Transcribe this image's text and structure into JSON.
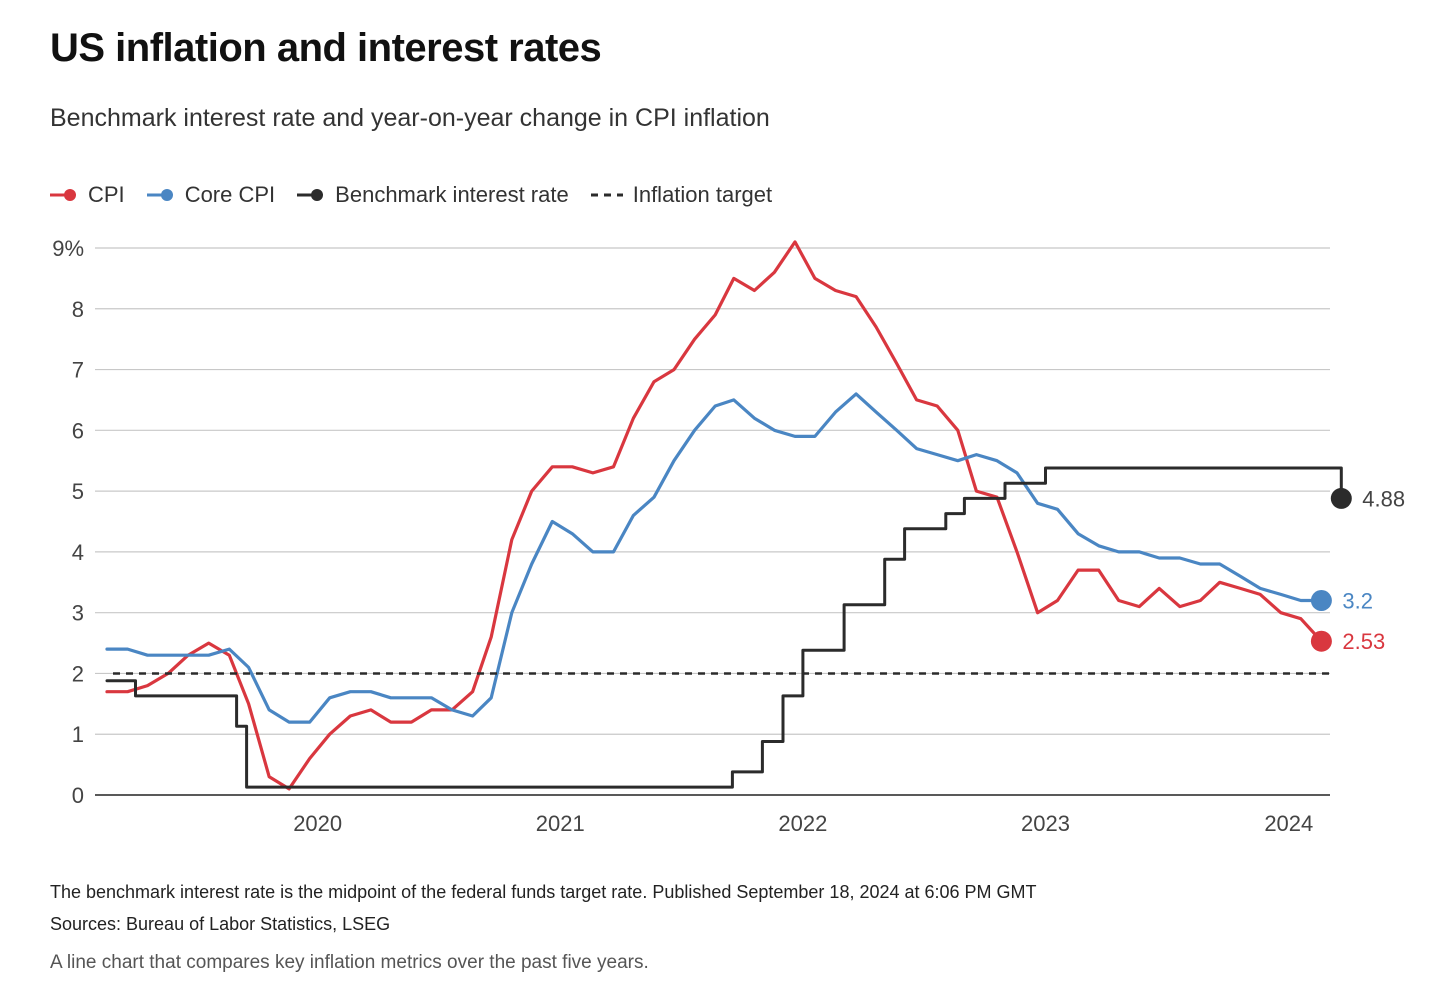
{
  "title": "US inflation and interest rates",
  "subtitle": "Benchmark interest rate and year-on-year change in CPI inflation",
  "legend": [
    {
      "label": "CPI",
      "color": "#d9373f",
      "style": "line-dot"
    },
    {
      "label": "Core CPI",
      "color": "#4a86c3",
      "style": "line-dot"
    },
    {
      "label": "Benchmark interest rate",
      "color": "#2b2b2b",
      "style": "line-dot"
    },
    {
      "label": "Inflation target",
      "color": "#2b2b2b",
      "style": "dashed"
    }
  ],
  "footnote": "The benchmark interest rate is the midpoint of the federal funds target rate. Published September 18, 2024 at 6:06 PM GMT",
  "sources": "Sources: Bureau of Labor Statistics, LSEG",
  "caption": "A line chart that compares key inflation metrics over the past five years.",
  "chart_data": {
    "type": "line",
    "ylim": [
      0,
      9
    ],
    "xlim": [
      "2019-08",
      "2024-09"
    ],
    "y_ticks": [
      "0",
      "1",
      "2",
      "3",
      "4",
      "5",
      "6",
      "7",
      "8",
      "9%"
    ],
    "x_ticks": [
      "2020",
      "2021",
      "2022",
      "2023",
      "2024"
    ],
    "grid": true,
    "legend_position": "top-left",
    "months": [
      "2019-08",
      "2019-09",
      "2019-10",
      "2019-11",
      "2019-12",
      "2020-01",
      "2020-02",
      "2020-03",
      "2020-04",
      "2020-05",
      "2020-06",
      "2020-07",
      "2020-08",
      "2020-09",
      "2020-10",
      "2020-11",
      "2020-12",
      "2021-01",
      "2021-02",
      "2021-03",
      "2021-04",
      "2021-05",
      "2021-06",
      "2021-07",
      "2021-08",
      "2021-09",
      "2021-10",
      "2021-11",
      "2021-12",
      "2022-01",
      "2022-02",
      "2022-03",
      "2022-04",
      "2022-05",
      "2022-06",
      "2022-07",
      "2022-08",
      "2022-09",
      "2022-10",
      "2022-11",
      "2022-12",
      "2023-01",
      "2023-02",
      "2023-03",
      "2023-04",
      "2023-05",
      "2023-06",
      "2023-07",
      "2023-08",
      "2023-09",
      "2023-10",
      "2023-11",
      "2023-12",
      "2024-01",
      "2024-02",
      "2024-03",
      "2024-04",
      "2024-05",
      "2024-06",
      "2024-07",
      "2024-08"
    ],
    "series": [
      {
        "name": "CPI",
        "color": "#d9373f",
        "end_label": "2.53",
        "values": [
          1.7,
          1.7,
          1.8,
          2.0,
          2.3,
          2.5,
          2.3,
          1.5,
          0.3,
          0.1,
          0.6,
          1.0,
          1.3,
          1.4,
          1.2,
          1.2,
          1.4,
          1.4,
          1.7,
          2.6,
          4.2,
          5.0,
          5.4,
          5.4,
          5.3,
          5.4,
          6.2,
          6.8,
          7.0,
          7.5,
          7.9,
          8.5,
          8.3,
          8.6,
          9.1,
          8.5,
          8.3,
          8.2,
          7.7,
          7.1,
          6.5,
          6.4,
          6.0,
          5.0,
          4.9,
          4.0,
          3.0,
          3.2,
          3.7,
          3.7,
          3.2,
          3.1,
          3.4,
          3.1,
          3.2,
          3.5,
          3.4,
          3.3,
          3.0,
          2.9,
          2.53
        ]
      },
      {
        "name": "Core CPI",
        "color": "#4a86c3",
        "end_label": "3.2",
        "values": [
          2.4,
          2.4,
          2.3,
          2.3,
          2.3,
          2.3,
          2.4,
          2.1,
          1.4,
          1.2,
          1.2,
          1.6,
          1.7,
          1.7,
          1.6,
          1.6,
          1.6,
          1.4,
          1.3,
          1.6,
          3.0,
          3.8,
          4.5,
          4.3,
          4.0,
          4.0,
          4.6,
          4.9,
          5.5,
          6.0,
          6.4,
          6.5,
          6.2,
          6.0,
          5.9,
          5.9,
          6.3,
          6.6,
          6.3,
          6.0,
          5.7,
          5.6,
          5.5,
          5.6,
          5.5,
          5.3,
          4.8,
          4.7,
          4.3,
          4.1,
          4.0,
          4.0,
          3.9,
          3.9,
          3.8,
          3.8,
          3.6,
          3.4,
          3.3,
          3.2,
          3.2
        ]
      },
      {
        "name": "Benchmark interest rate",
        "color": "#2b2b2b",
        "step": true,
        "end_label": "4.88",
        "dates": [
          "2019-08",
          "2019-09",
          "2019-10",
          "2019-11",
          "2019-12",
          "2020-01",
          "2020-02",
          "2020-03",
          "2020-03-16",
          "2022-03-17",
          "2022-05",
          "2022-06",
          "2022-07",
          "2022-09",
          "2022-11",
          "2022-12",
          "2023-02",
          "2023-03",
          "2023-05",
          "2023-07",
          "2024-09-01",
          "2024-09-18"
        ],
        "values": [
          1.88,
          1.88,
          1.63,
          1.63,
          1.63,
          1.63,
          1.63,
          1.13,
          0.13,
          0.38,
          0.88,
          1.63,
          2.38,
          3.13,
          3.88,
          4.38,
          4.63,
          4.88,
          5.13,
          5.38,
          5.38,
          4.88
        ]
      },
      {
        "name": "Inflation target",
        "color": "#2b2b2b",
        "dashed": true,
        "values": [
          2,
          2
        ]
      }
    ]
  }
}
